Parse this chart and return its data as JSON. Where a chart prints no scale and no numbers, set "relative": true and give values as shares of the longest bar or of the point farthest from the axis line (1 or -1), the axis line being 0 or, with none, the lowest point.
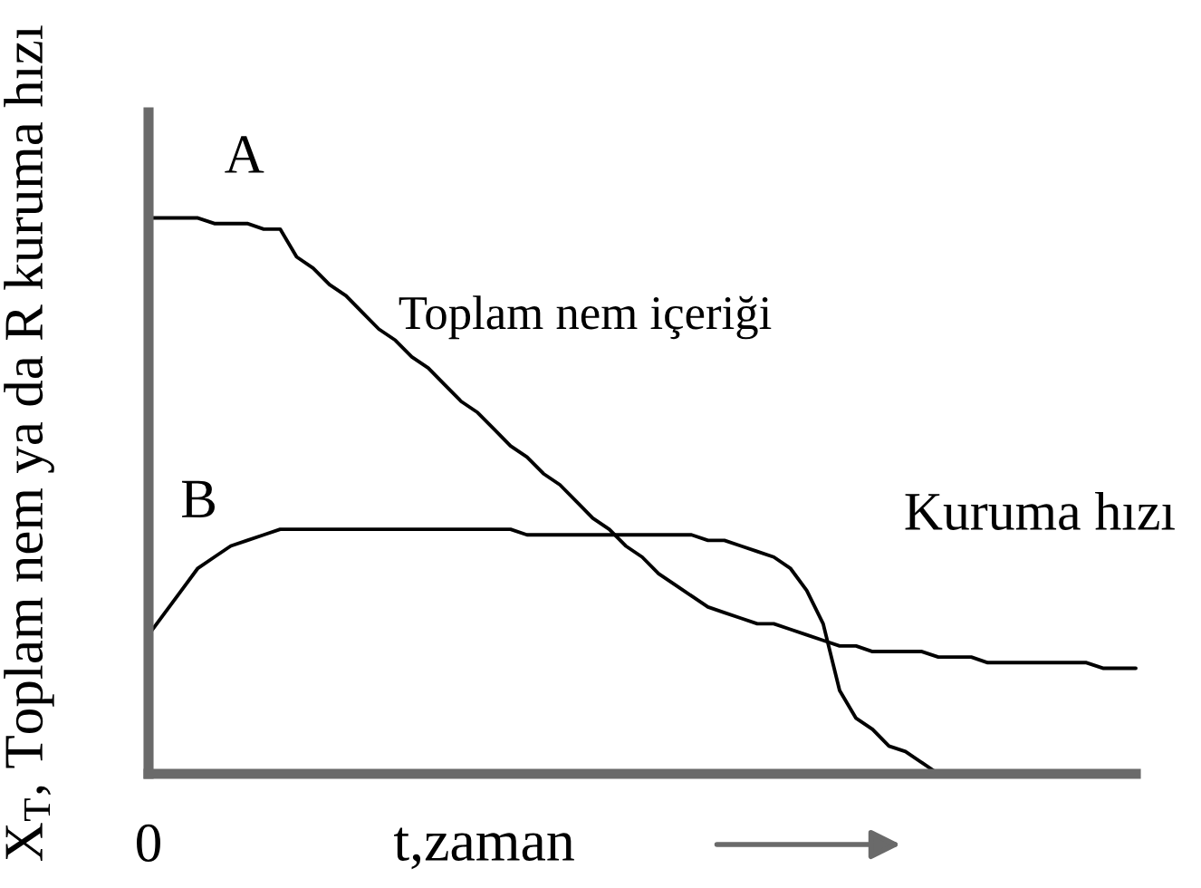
{
  "chart_data": {
    "type": "line",
    "relative": true,
    "marker": "none",
    "line_style": "solid",
    "ylabel": "X$_{T}$, Toplam nem ya da R kuruma hızı",
    "xlabel": "t,zaman",
    "annotations": [
      "A",
      "B",
      "0"
    ],
    "categories": [
      null,
      null,
      null,
      null,
      null,
      null,
      null,
      null,
      null,
      null,
      null,
      null,
      null,
      null,
      null,
      null,
      null,
      null,
      null,
      null,
      null,
      null,
      null,
      null,
      null,
      null,
      null,
      null,
      null,
      null,
      null,
      null,
      null,
      null,
      null,
      null,
      null,
      null,
      null,
      null,
      null,
      null,
      null,
      null,
      null,
      null,
      null,
      null,
      null,
      null,
      null,
      null,
      null,
      null,
      null,
      null,
      null,
      null,
      null,
      null,
      null
    ],
    "series": [
      {
        "name": "Toplam nem içeriği",
        "color": "#000000",
        "values": [
          1.0,
          1.0,
          1.0,
          1.0,
          0.99,
          0.99,
          0.99,
          0.98,
          0.98,
          0.93,
          0.91,
          0.88,
          0.86,
          0.83,
          0.8,
          0.78,
          0.75,
          0.73,
          0.7,
          0.67,
          0.65,
          0.62,
          0.59,
          0.57,
          0.54,
          0.52,
          0.49,
          0.46,
          0.44,
          0.41,
          0.39,
          0.36,
          0.34,
          0.32,
          0.3,
          0.29,
          0.28,
          0.27,
          0.27,
          0.26,
          0.25,
          0.24,
          0.23,
          0.23,
          0.22,
          0.22,
          0.22,
          0.22,
          0.21,
          0.21,
          0.21,
          0.2,
          0.2,
          0.2,
          0.2,
          0.2,
          0.2,
          0.2,
          0.19,
          0.19,
          0.19
        ]
      },
      {
        "name": "Kuruma hızı",
        "color": "#000000",
        "values": [
          0.25,
          0.29,
          0.33,
          0.37,
          0.39,
          0.41,
          0.42,
          0.43,
          0.44,
          0.44,
          0.44,
          0.44,
          0.44,
          0.44,
          0.44,
          0.44,
          0.44,
          0.44,
          0.44,
          0.44,
          0.44,
          0.44,
          0.44,
          0.43,
          0.43,
          0.43,
          0.43,
          0.43,
          0.43,
          0.43,
          0.43,
          0.43,
          0.43,
          0.43,
          0.42,
          0.42,
          0.41,
          0.4,
          0.39,
          0.37,
          0.33,
          0.27,
          0.15,
          0.1,
          0.08,
          0.05,
          0.04,
          0.02,
          0.0,
          null,
          null,
          null,
          null,
          null,
          null,
          null,
          null,
          null,
          null,
          null,
          null
        ]
      }
    ]
  }
}
